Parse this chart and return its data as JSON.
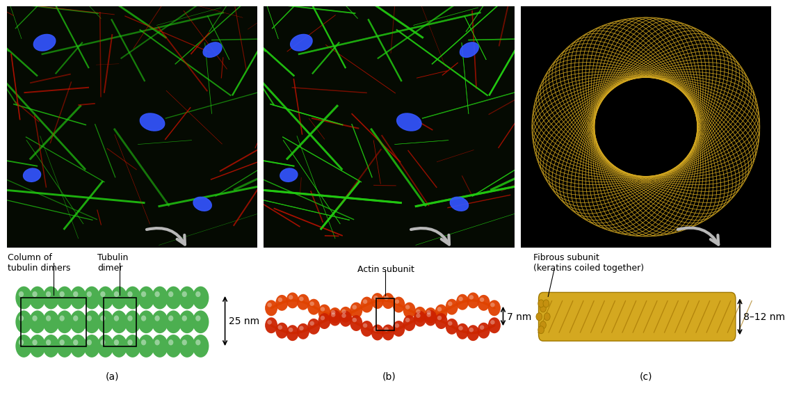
{
  "bg_color": "#ffffff",
  "panel_a": {
    "label": "(a)",
    "annotation_col": "Column of\ntubulin dimers",
    "annotation_tub": "Tubulin\ndimer",
    "size_label": "25 nm",
    "sphere_color": "#4caf50"
  },
  "panel_b": {
    "label": "(b)",
    "actin_color1": "#e53000",
    "actin_color2": "#cc2200",
    "strand_color": "#dd8800",
    "annotation": "Actin subunit",
    "size_label": "7 nm"
  },
  "panel_c": {
    "label": "(c)",
    "fiber_color": "#d4a820",
    "fiber_dark": "#a07800",
    "annotation": "Fibrous subunit\n(keratins coiled together)",
    "size_label": "8–12 nm"
  },
  "arrow_color": "#b8b8b8",
  "text_color": "#000000",
  "fontsize_annot": 9,
  "fontsize_nm": 10,
  "fontsize_label": 10
}
